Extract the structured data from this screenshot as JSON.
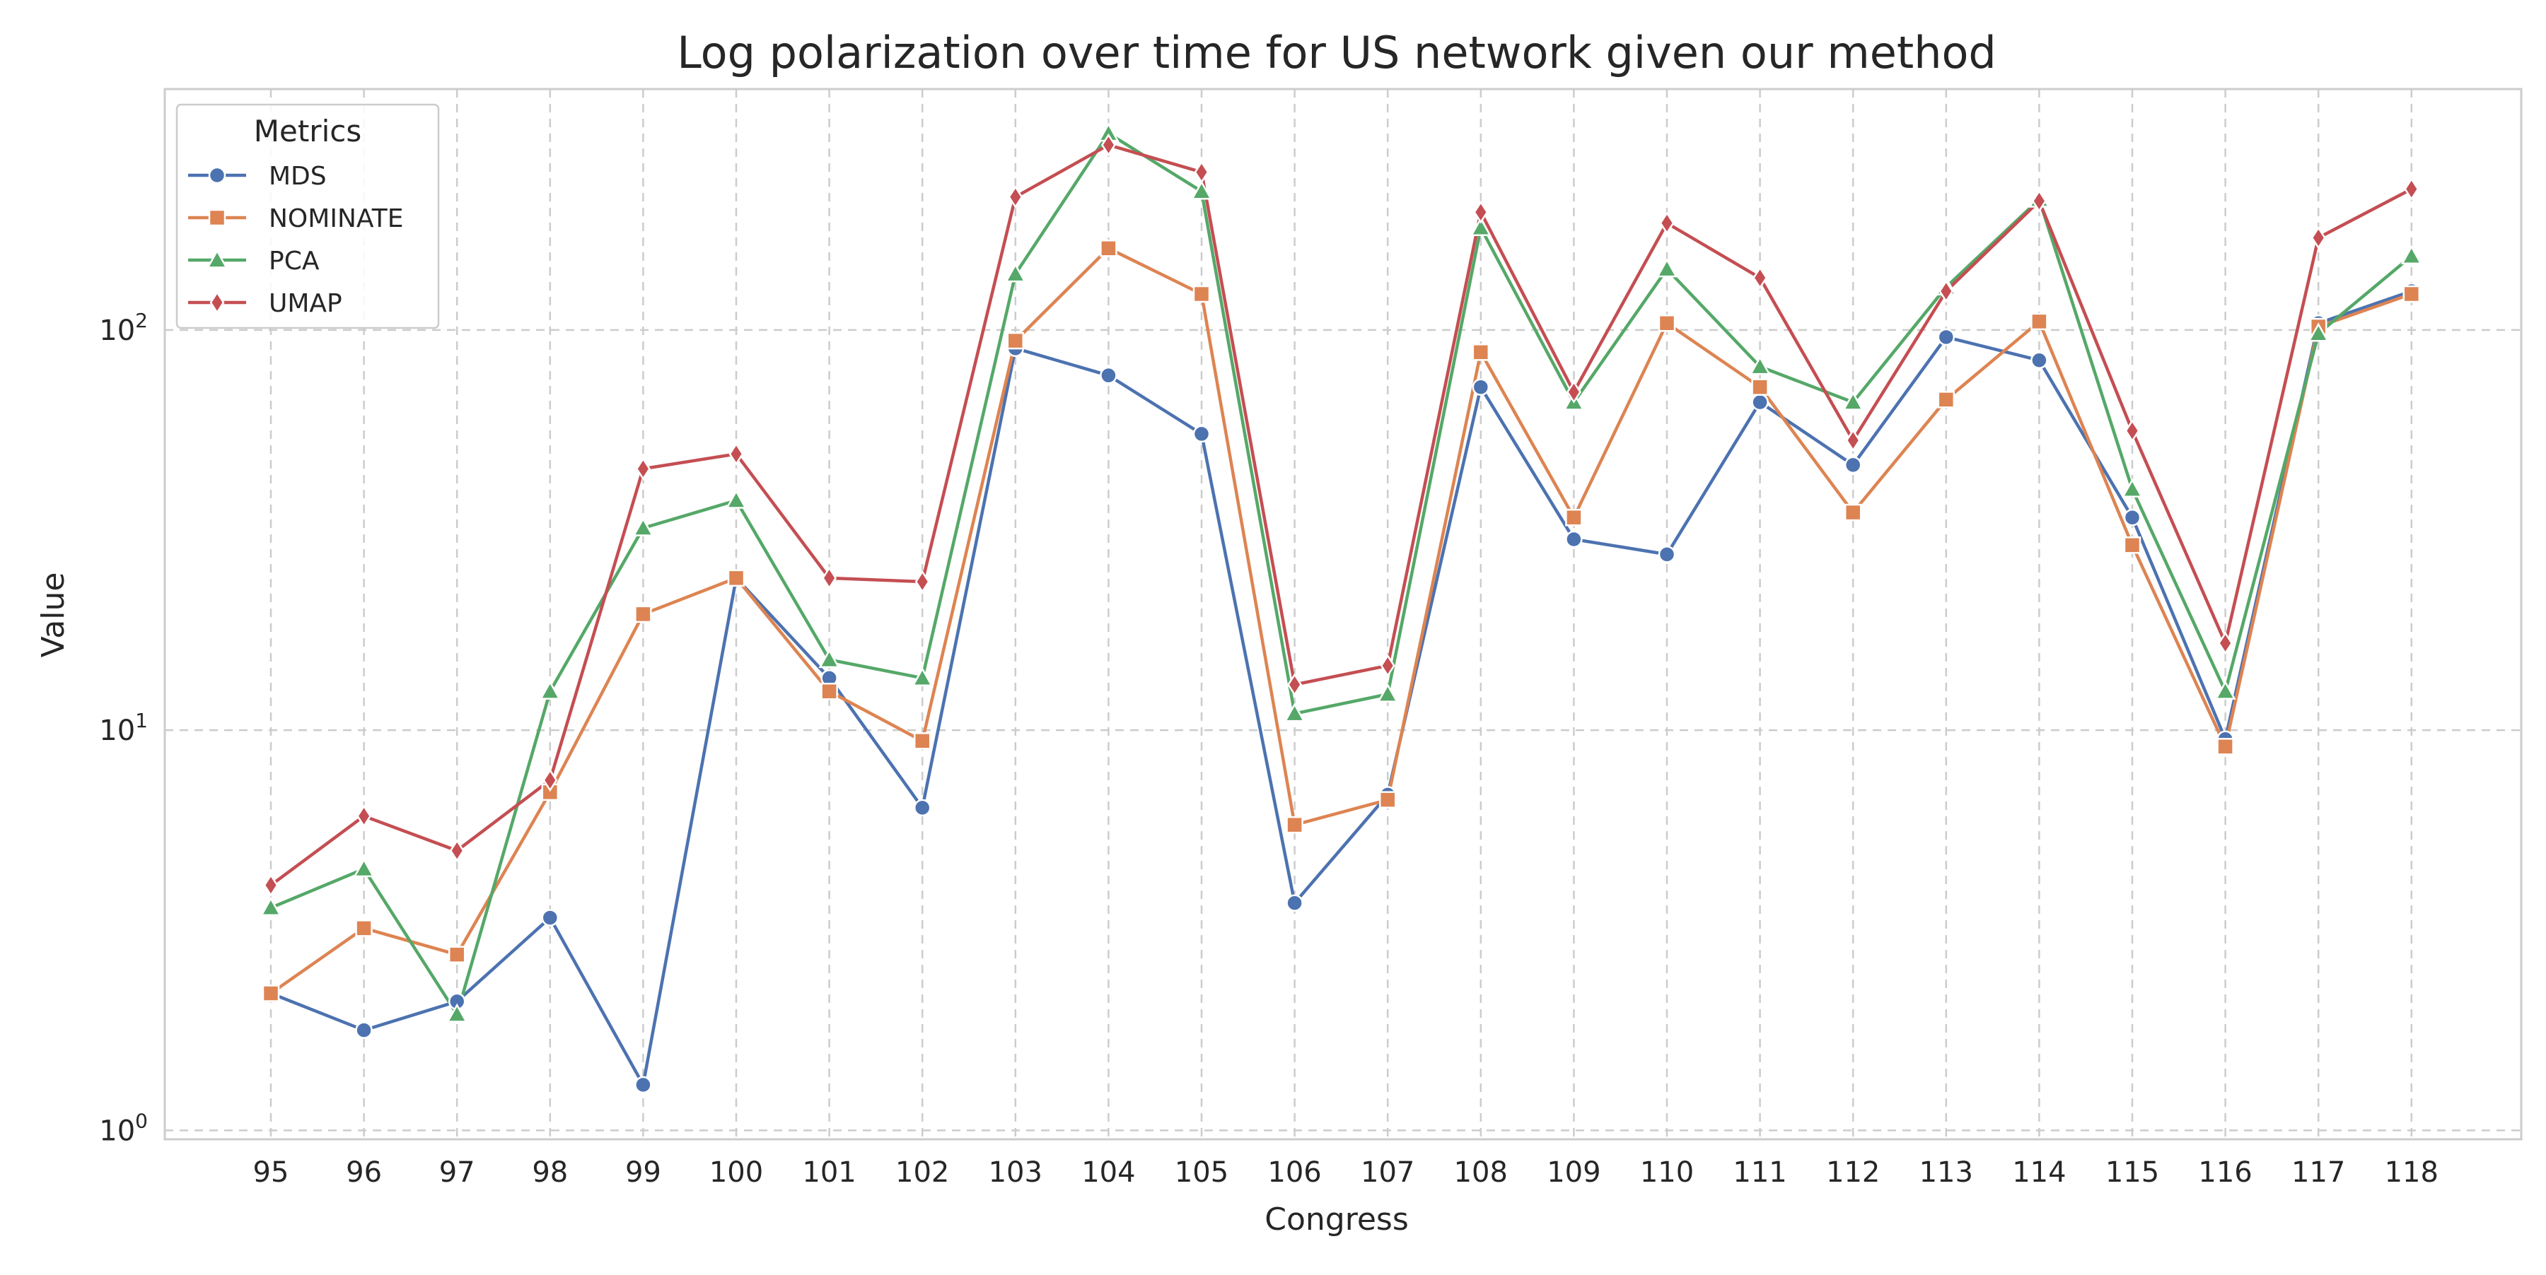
{
  "chart_data": {
    "type": "line",
    "title": "Log polarization over time for US network given our method",
    "xlabel": "Congress",
    "ylabel": "Value",
    "yscale": "log",
    "ylim": [
      0.95,
      400
    ],
    "y_ticks": [
      1,
      10,
      100
    ],
    "y_tick_labels": [
      {
        "base": "10",
        "exp": "0"
      },
      {
        "base": "10",
        "exp": "1"
      },
      {
        "base": "10",
        "exp": "2"
      }
    ],
    "grid": true,
    "legend_position": "top-left",
    "legend_title": "Metrics",
    "x": [
      95,
      96,
      97,
      98,
      99,
      100,
      101,
      102,
      103,
      104,
      105,
      106,
      107,
      108,
      109,
      110,
      111,
      112,
      113,
      114,
      115,
      116,
      117,
      118
    ],
    "series": [
      {
        "name": "MDS",
        "color": "#4c72b0",
        "marker": "circle",
        "values": [
          2.2,
          1.78,
          2.1,
          3.4,
          1.3,
          24,
          13.5,
          6.4,
          90,
          77,
          55,
          3.7,
          6.9,
          72,
          30,
          27.5,
          66,
          46,
          96,
          84,
          34,
          9.5,
          104,
          125
        ]
      },
      {
        "name": "NOMINATE",
        "color": "#dd8452",
        "marker": "square",
        "values": [
          2.2,
          3.2,
          2.75,
          7.0,
          19.5,
          24,
          12.5,
          9.4,
          94,
          160,
          123,
          5.8,
          6.7,
          88,
          34,
          104,
          72,
          35,
          67,
          105,
          29,
          9.1,
          102,
          123
        ]
      },
      {
        "name": "PCA",
        "color": "#55a868",
        "marker": "triangle",
        "values": [
          3.6,
          4.5,
          1.95,
          12.5,
          32,
          37.5,
          15,
          13.5,
          138,
          310,
          222,
          11,
          12.3,
          180,
          66,
          142,
          81,
          66,
          128,
          212,
          40,
          12.5,
          98,
          153
        ]
      },
      {
        "name": "UMAP",
        "color": "#c44e52",
        "marker": "diamond",
        "values": [
          4.1,
          6.1,
          5.0,
          7.5,
          45,
          49,
          24,
          23.5,
          215,
          290,
          248,
          13,
          14.5,
          197,
          70,
          185,
          135,
          53,
          125,
          210,
          56,
          16.5,
          170,
          225
        ]
      }
    ]
  }
}
